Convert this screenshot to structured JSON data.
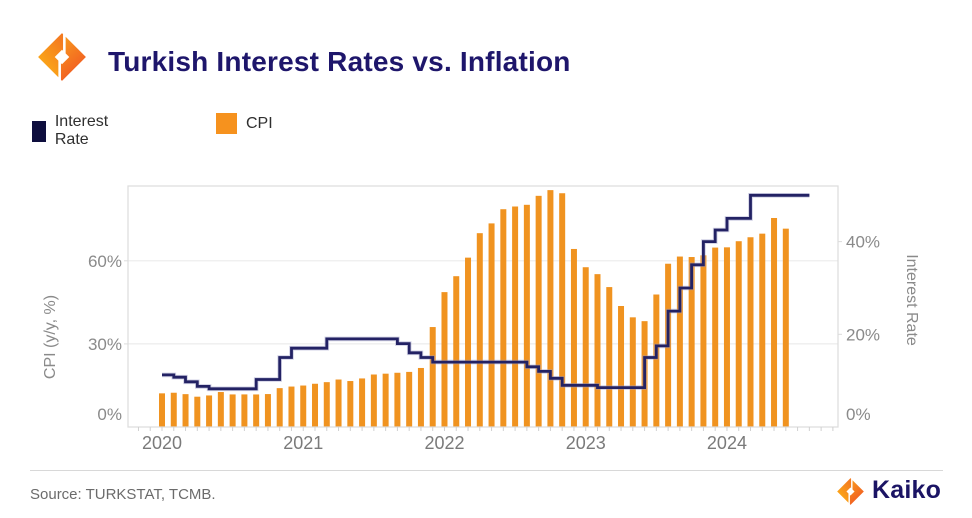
{
  "header": {
    "title": "Turkish Interest Rates vs. Inflation",
    "logo": "kaiko-mark-icon"
  },
  "legend": {
    "items": [
      {
        "label": "Interest Rate",
        "color": "#0e0e3e"
      },
      {
        "label": "CPI",
        "color": "#f6921e"
      }
    ]
  },
  "axes": {
    "left_title": "CPI (y/y, %)",
    "right_title": "Interest Rate"
  },
  "footer": {
    "source": "Source: TURKSTAT, TCMB.",
    "brand": "Kaiko"
  },
  "colors": {
    "title_navy": "#1e166b",
    "line_navy": "#232264",
    "bar_orange": "#f09320",
    "axis_text_gray": "#8a8a8a",
    "grid_gray": "#ececec",
    "border_gray": "#dcdcdc"
  },
  "chart_data": {
    "type": "bar",
    "subtype": "bar + step line combo, monthly data",
    "title": "Turkish Interest Rates vs. Inflation",
    "x": {
      "start": "2020-01",
      "frequency": "monthly",
      "tick_labels": [
        "2020",
        "2021",
        "2022",
        "2023",
        "2024"
      ]
    },
    "series": [
      {
        "name": "CPI",
        "chart": "bar",
        "axis": "left",
        "unit": "% y/y",
        "color": "#f09320",
        "values": [
          12.15,
          12.37,
          11.86,
          10.94,
          11.39,
          12.62,
          11.76,
          11.77,
          11.75,
          11.89,
          14.03,
          14.6,
          14.97,
          15.61,
          16.19,
          17.14,
          16.59,
          17.53,
          18.95,
          19.25,
          19.58,
          19.89,
          21.31,
          36.08,
          48.69,
          54.44,
          61.14,
          69.97,
          73.5,
          78.62,
          79.6,
          80.21,
          83.45,
          85.51,
          84.39,
          64.27,
          57.68,
          55.18,
          50.51,
          43.68,
          39.59,
          38.21,
          47.83,
          58.94,
          61.53,
          61.36,
          61.98,
          64.77,
          64.86,
          67.07,
          68.5,
          69.8,
          75.45,
          71.6
        ]
      },
      {
        "name": "Interest Rate",
        "chart": "step-line",
        "axis": "right",
        "unit": "%",
        "color": "#232264",
        "values": [
          11.25,
          10.75,
          9.75,
          8.75,
          8.25,
          8.25,
          8.25,
          8.25,
          10.25,
          10.25,
          15.0,
          17.0,
          17.0,
          17.0,
          19.0,
          19.0,
          19.0,
          19.0,
          19.0,
          19.0,
          18.0,
          16.0,
          15.0,
          14.0,
          14.0,
          14.0,
          14.0,
          14.0,
          14.0,
          14.0,
          14.0,
          13.0,
          12.0,
          10.5,
          9.0,
          9.0,
          9.0,
          8.5,
          8.5,
          8.5,
          8.5,
          15.0,
          17.5,
          25.0,
          30.0,
          35.0,
          40.0,
          42.5,
          45.0,
          45.0,
          50.0,
          50.0,
          50.0,
          50.0,
          50.0,
          50.0
        ]
      }
    ],
    "left_axis": {
      "title": "CPI (y/y, %)",
      "ticks": [
        0,
        30,
        60
      ],
      "tick_suffix": "%",
      "range": [
        0,
        87
      ],
      "gridlines": [
        30,
        60
      ]
    },
    "right_axis": {
      "title": "Interest Rate",
      "ticks": [
        0,
        20,
        40
      ],
      "tick_suffix": "%",
      "range": [
        0,
        52
      ]
    },
    "legend_position": "top-left",
    "grid": "horizontal-only"
  }
}
